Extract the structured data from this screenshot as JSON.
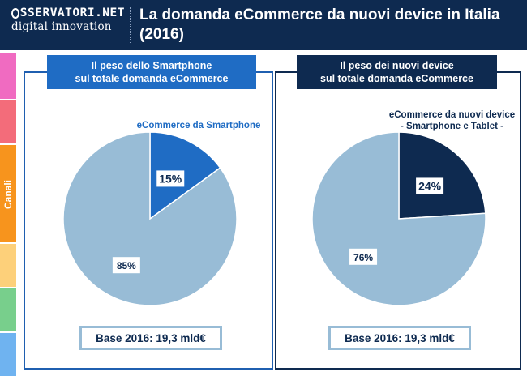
{
  "header": {
    "logo_top": "SSERVATORI.NET",
    "logo_bottom": "digital innovation",
    "title": "La domanda eCommerce da nuovi device in Italia (2016)"
  },
  "sidebar": {
    "label": "Canali",
    "colors": [
      "#f06bc1",
      "#f36c7a",
      "#f7941d",
      "#fdd07a",
      "#78cf8c",
      "#6fb3f0"
    ]
  },
  "left_panel": {
    "title_line1": "Il peso dello Smartphone",
    "title_line2": "sul totale domanda eCommerce",
    "legend": "eCommerce da Smartphone",
    "base": "Base 2016: 19,3 mld€"
  },
  "right_panel": {
    "title_line1": "Il peso dei nuovi device",
    "title_line2": "sul totale domanda eCommerce",
    "legend_line1": "eCommerce da nuovi device",
    "legend_line2": "- Smartphone e Tablet -",
    "base": "Base 2016: 19,3 mld€"
  },
  "chart_data": [
    {
      "type": "pie",
      "title": "",
      "slices": [
        {
          "label": "eCommerce da Smartphone",
          "value": 15,
          "display": "15%",
          "color": "#1f6cc4"
        },
        {
          "label": "",
          "value": 85,
          "display": "85%",
          "color": "#98bcd6"
        }
      ]
    },
    {
      "type": "pie",
      "title": "",
      "slices": [
        {
          "label": "eCommerce da nuovi device - Smartphone e Tablet -",
          "value": 24,
          "display": "24%",
          "color": "#0e2a50"
        },
        {
          "label": "",
          "value": 76,
          "display": "76%",
          "color": "#98bcd6"
        }
      ]
    }
  ]
}
